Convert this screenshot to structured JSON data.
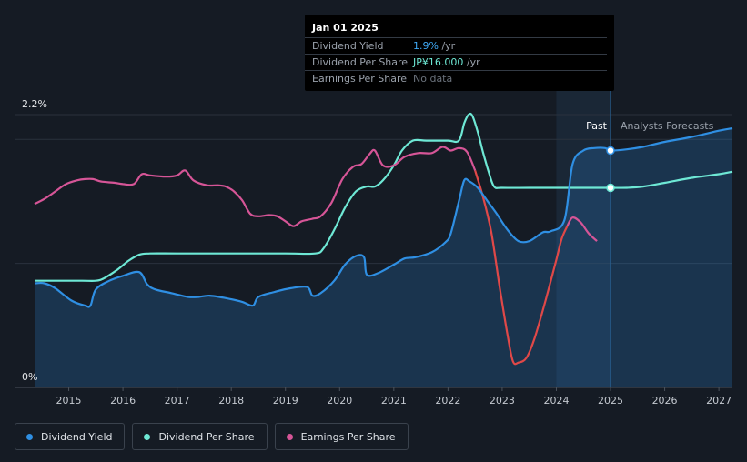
{
  "tooltip": {
    "date": "Jan 01 2025",
    "rows": [
      {
        "label": "Dividend Yield",
        "value": "1.9%",
        "unit": " /yr",
        "color": "#3fa9f5"
      },
      {
        "label": "Dividend Per Share",
        "value": "JP¥16.000",
        "unit": " /yr",
        "color": "#6ee8d5"
      },
      {
        "label": "Earnings Per Share",
        "value": "No data",
        "unit": "",
        "color": "#6b727c"
      }
    ]
  },
  "legend": [
    {
      "label": "Dividend Yield",
      "color": "#2f8fe3"
    },
    {
      "label": "Dividend Per Share",
      "color": "#6ee8d5"
    },
    {
      "label": "Earnings Per Share",
      "color": "#d65597"
    }
  ],
  "chart_data": {
    "type": "line",
    "y_axis": {
      "range": [
        0,
        2.2
      ],
      "tick_labels": [
        "2.2%",
        "0%"
      ],
      "unit": "%"
    },
    "x_axis": {
      "range": [
        2014.0,
        2027.25
      ],
      "tick_labels": [
        "2015",
        "2016",
        "2017",
        "2018",
        "2019",
        "2020",
        "2021",
        "2022",
        "2023",
        "2024",
        "2025",
        "2026",
        "2027"
      ]
    },
    "past_label": "Past",
    "forecast_label": "Analysts Forecasts",
    "forecast_start": 2025.0,
    "highlight_start": 2024.0,
    "colors": {
      "yield": "#2f8fe3",
      "dps": "#6ee8d5",
      "eps_rise": "#d65597",
      "eps_fall": "#e04848"
    },
    "series": [
      {
        "name": "Dividend Yield",
        "key": "yield",
        "x": [
          2014.37,
          2014.55,
          2014.75,
          2015.05,
          2015.3,
          2015.4,
          2015.5,
          2015.75,
          2016.0,
          2016.3,
          2016.45,
          2016.6,
          2016.9,
          2017.2,
          2017.4,
          2017.6,
          2017.9,
          2018.2,
          2018.4,
          2018.5,
          2018.8,
          2019.1,
          2019.4,
          2019.5,
          2019.65,
          2019.9,
          2020.1,
          2020.3,
          2020.45,
          2020.5,
          2020.7,
          2021.0,
          2021.2,
          2021.4,
          2021.7,
          2021.95,
          2022.05,
          2022.2,
          2022.3,
          2022.4,
          2022.55,
          2022.7,
          2022.9,
          2023.1,
          2023.3,
          2023.5,
          2023.75,
          2023.9,
          2024.15,
          2024.3,
          2024.5,
          2024.7,
          2024.9,
          2025.0,
          2025.3,
          2025.6,
          2026.0,
          2026.5,
          2027.0,
          2027.25
        ],
        "values": [
          0.84,
          0.84,
          0.8,
          0.7,
          0.66,
          0.66,
          0.79,
          0.86,
          0.9,
          0.93,
          0.83,
          0.79,
          0.76,
          0.73,
          0.73,
          0.74,
          0.72,
          0.69,
          0.66,
          0.73,
          0.77,
          0.8,
          0.81,
          0.74,
          0.76,
          0.86,
          0.99,
          1.06,
          1.05,
          0.91,
          0.92,
          0.99,
          1.04,
          1.05,
          1.09,
          1.17,
          1.24,
          1.5,
          1.67,
          1.66,
          1.61,
          1.52,
          1.4,
          1.27,
          1.18,
          1.18,
          1.25,
          1.26,
          1.35,
          1.8,
          1.91,
          1.93,
          1.93,
          1.91,
          1.92,
          1.94,
          1.98,
          2.02,
          2.07,
          2.09
        ]
      },
      {
        "name": "Dividend Per Share",
        "key": "dps",
        "x": [
          2014.37,
          2014.8,
          2015.25,
          2015.5,
          2015.65,
          2015.9,
          2016.1,
          2016.3,
          2016.5,
          2017.0,
          2018.0,
          2019.0,
          2019.55,
          2019.7,
          2019.9,
          2020.1,
          2020.3,
          2020.5,
          2020.65,
          2020.8,
          2021.0,
          2021.15,
          2021.35,
          2021.6,
          2022.0,
          2022.2,
          2022.3,
          2022.38,
          2022.45,
          2022.55,
          2022.65,
          2022.75,
          2022.85,
          2023.0,
          2023.5,
          2024.0,
          2024.5,
          2025.0,
          2025.3,
          2025.6,
          2026.0,
          2026.5,
          2027.0,
          2027.25
        ],
        "values": [
          0.86,
          0.86,
          0.86,
          0.86,
          0.88,
          0.95,
          1.02,
          1.07,
          1.08,
          1.08,
          1.08,
          1.08,
          1.08,
          1.12,
          1.27,
          1.45,
          1.58,
          1.62,
          1.62,
          1.67,
          1.79,
          1.91,
          1.99,
          1.99,
          1.99,
          1.99,
          2.13,
          2.2,
          2.19,
          2.06,
          1.89,
          1.74,
          1.62,
          1.61,
          1.61,
          1.61,
          1.61,
          1.61,
          1.61,
          1.62,
          1.65,
          1.69,
          1.72,
          1.74
        ]
      },
      {
        "name": "Earnings Per Share",
        "key": "eps",
        "x": [
          2014.37,
          2014.55,
          2014.75,
          2014.95,
          2015.15,
          2015.3,
          2015.45,
          2015.6,
          2015.85,
          2016.0,
          2016.2,
          2016.35,
          2016.5,
          2016.8,
          2017.0,
          2017.15,
          2017.3,
          2017.55,
          2017.75,
          2017.9,
          2018.05,
          2018.2,
          2018.35,
          2018.5,
          2018.7,
          2018.85,
          2019.0,
          2019.15,
          2019.3,
          2019.5,
          2019.65,
          2019.85,
          2020.05,
          2020.25,
          2020.4,
          2020.55,
          2020.65,
          2020.8,
          2021.0,
          2021.2,
          2021.45,
          2021.7,
          2021.9,
          2022.05,
          2022.2,
          2022.35,
          2022.5,
          2022.65,
          2022.8,
          2022.95,
          2023.1,
          2023.2,
          2023.3,
          2023.45,
          2023.6,
          2023.8,
          2024.0,
          2024.1,
          2024.2,
          2024.3,
          2024.45,
          2024.6,
          2024.75
        ],
        "values": [
          1.48,
          1.52,
          1.58,
          1.64,
          1.67,
          1.68,
          1.68,
          1.66,
          1.65,
          1.64,
          1.64,
          1.72,
          1.71,
          1.7,
          1.71,
          1.75,
          1.67,
          1.63,
          1.63,
          1.62,
          1.58,
          1.51,
          1.4,
          1.38,
          1.39,
          1.38,
          1.34,
          1.3,
          1.34,
          1.36,
          1.38,
          1.49,
          1.68,
          1.78,
          1.8,
          1.88,
          1.91,
          1.79,
          1.79,
          1.86,
          1.89,
          1.89,
          1.94,
          1.91,
          1.93,
          1.9,
          1.75,
          1.53,
          1.25,
          0.82,
          0.42,
          0.21,
          0.2,
          0.24,
          0.4,
          0.7,
          1.03,
          1.2,
          1.3,
          1.37,
          1.33,
          1.24,
          1.18
        ]
      }
    ]
  }
}
